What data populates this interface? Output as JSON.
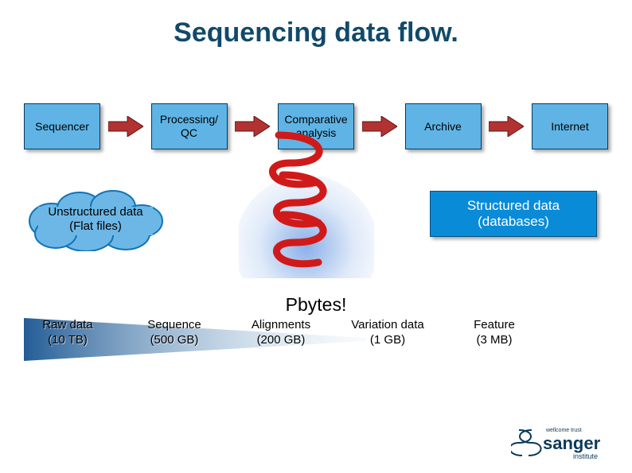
{
  "title": "Sequencing data flow.",
  "flow": {
    "boxes": [
      "Sequencer",
      "Processing/\nQC",
      "Comparative\nanalysis",
      "Archive",
      "Internet"
    ],
    "box_fill": "#5fb4e5",
    "box_border": "#0b3a5a",
    "arrow_fill": "#b23232",
    "arrow_stroke": "#601414"
  },
  "cloud": {
    "label": "Unstructured data\n(Flat files)",
    "fill": "#6db7e6",
    "stroke": "#1073b8"
  },
  "structured": {
    "label": "Structured data\n(databases)",
    "fill": "#0a8bd8"
  },
  "swirl_color": "#d01a1a",
  "pbytes": "Pbytes!",
  "wedge": {
    "color_left": "#0a4a8a",
    "color_right": "#cfe3f2"
  },
  "data_sizes": [
    {
      "label": "Raw data",
      "size": "(10 TB)"
    },
    {
      "label": "Sequence",
      "size": "(500 GB)"
    },
    {
      "label": "Alignments",
      "size": "(200 GB)"
    },
    {
      "label": "Variation data",
      "size": "(1 GB)"
    },
    {
      "label": "Feature",
      "size": "(3 MB)"
    }
  ],
  "logo": {
    "top": "wellcome trust",
    "main": "sanger",
    "sub": "institute",
    "color": "#0b3a5a"
  },
  "title_color": "#11496b"
}
